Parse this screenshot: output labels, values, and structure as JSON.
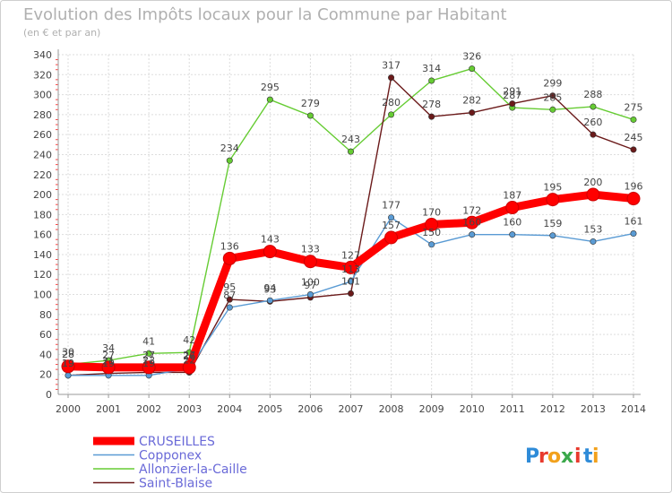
{
  "chart_data": {
    "type": "line",
    "title": "Evolution des Impôts locaux pour la Commune par Habitant",
    "subtitle": "(en € et par an)",
    "x": [
      "2000",
      "2001",
      "2002",
      "2003",
      "2004",
      "2005",
      "2006",
      "2007",
      "2008",
      "2009",
      "2010",
      "2011",
      "2012",
      "2013",
      "2014"
    ],
    "ylim": [
      0,
      340
    ],
    "yticks": [
      0,
      20,
      40,
      60,
      80,
      100,
      120,
      140,
      160,
      180,
      200,
      220,
      240,
      260,
      280,
      300,
      320,
      340
    ],
    "grid": true,
    "legend_position": "bottom-left",
    "series": [
      {
        "name": "CRUSEILLES",
        "color": "#ff0000",
        "values": [
          28,
          27,
          27,
          27,
          136,
          143,
          133,
          127,
          157,
          170,
          172,
          187,
          195,
          200,
          196
        ],
        "labels": [
          "28",
          "27",
          "27",
          "27",
          "136",
          "143",
          "133",
          "127",
          "157",
          "170",
          "172",
          "187",
          "195",
          "200",
          "196"
        ]
      },
      {
        "name": "Copponex",
        "color": "#5a9bd4",
        "values": [
          19,
          19,
          19,
          26,
          87,
          94,
          100,
          113,
          177,
          150,
          160,
          160,
          159,
          153,
          161
        ],
        "labels": [
          "19",
          "19",
          "19",
          "26",
          "87",
          "94",
          "100",
          "113",
          "177",
          "150",
          "160",
          "160",
          "159",
          "153",
          "161"
        ]
      },
      {
        "name": "Allonzier-la-Caille",
        "color": "#66cc33",
        "values": [
          30,
          34,
          41,
          42,
          234,
          295,
          279,
          243,
          280,
          314,
          326,
          287,
          285,
          288,
          275
        ],
        "labels": [
          "30",
          "34",
          "41",
          "42",
          "234",
          "295",
          "279",
          "243",
          "280",
          "314",
          "326",
          "287",
          "285",
          "288",
          "275"
        ]
      },
      {
        "name": "Saint-Blaise",
        "color": "#6b1a1a",
        "values": [
          19,
          21,
          22,
          22,
          95,
          93,
          97,
          101,
          317,
          278,
          282,
          291,
          299,
          260,
          245
        ],
        "labels": [
          "19",
          "21",
          "22",
          "22",
          "95",
          "93",
          "97",
          "101",
          "317",
          "278",
          "282",
          "291",
          "299",
          "260",
          "245"
        ]
      }
    ]
  },
  "brand": {
    "letters": [
      "P",
      "r",
      "o",
      "x",
      "i",
      "t",
      "i"
    ],
    "colors": [
      "#2e8bd8",
      "#e83a2d",
      "#f2a11c",
      "#3aa84a",
      "#e83a2d",
      "#2e8bd8",
      "#f2a11c"
    ]
  }
}
